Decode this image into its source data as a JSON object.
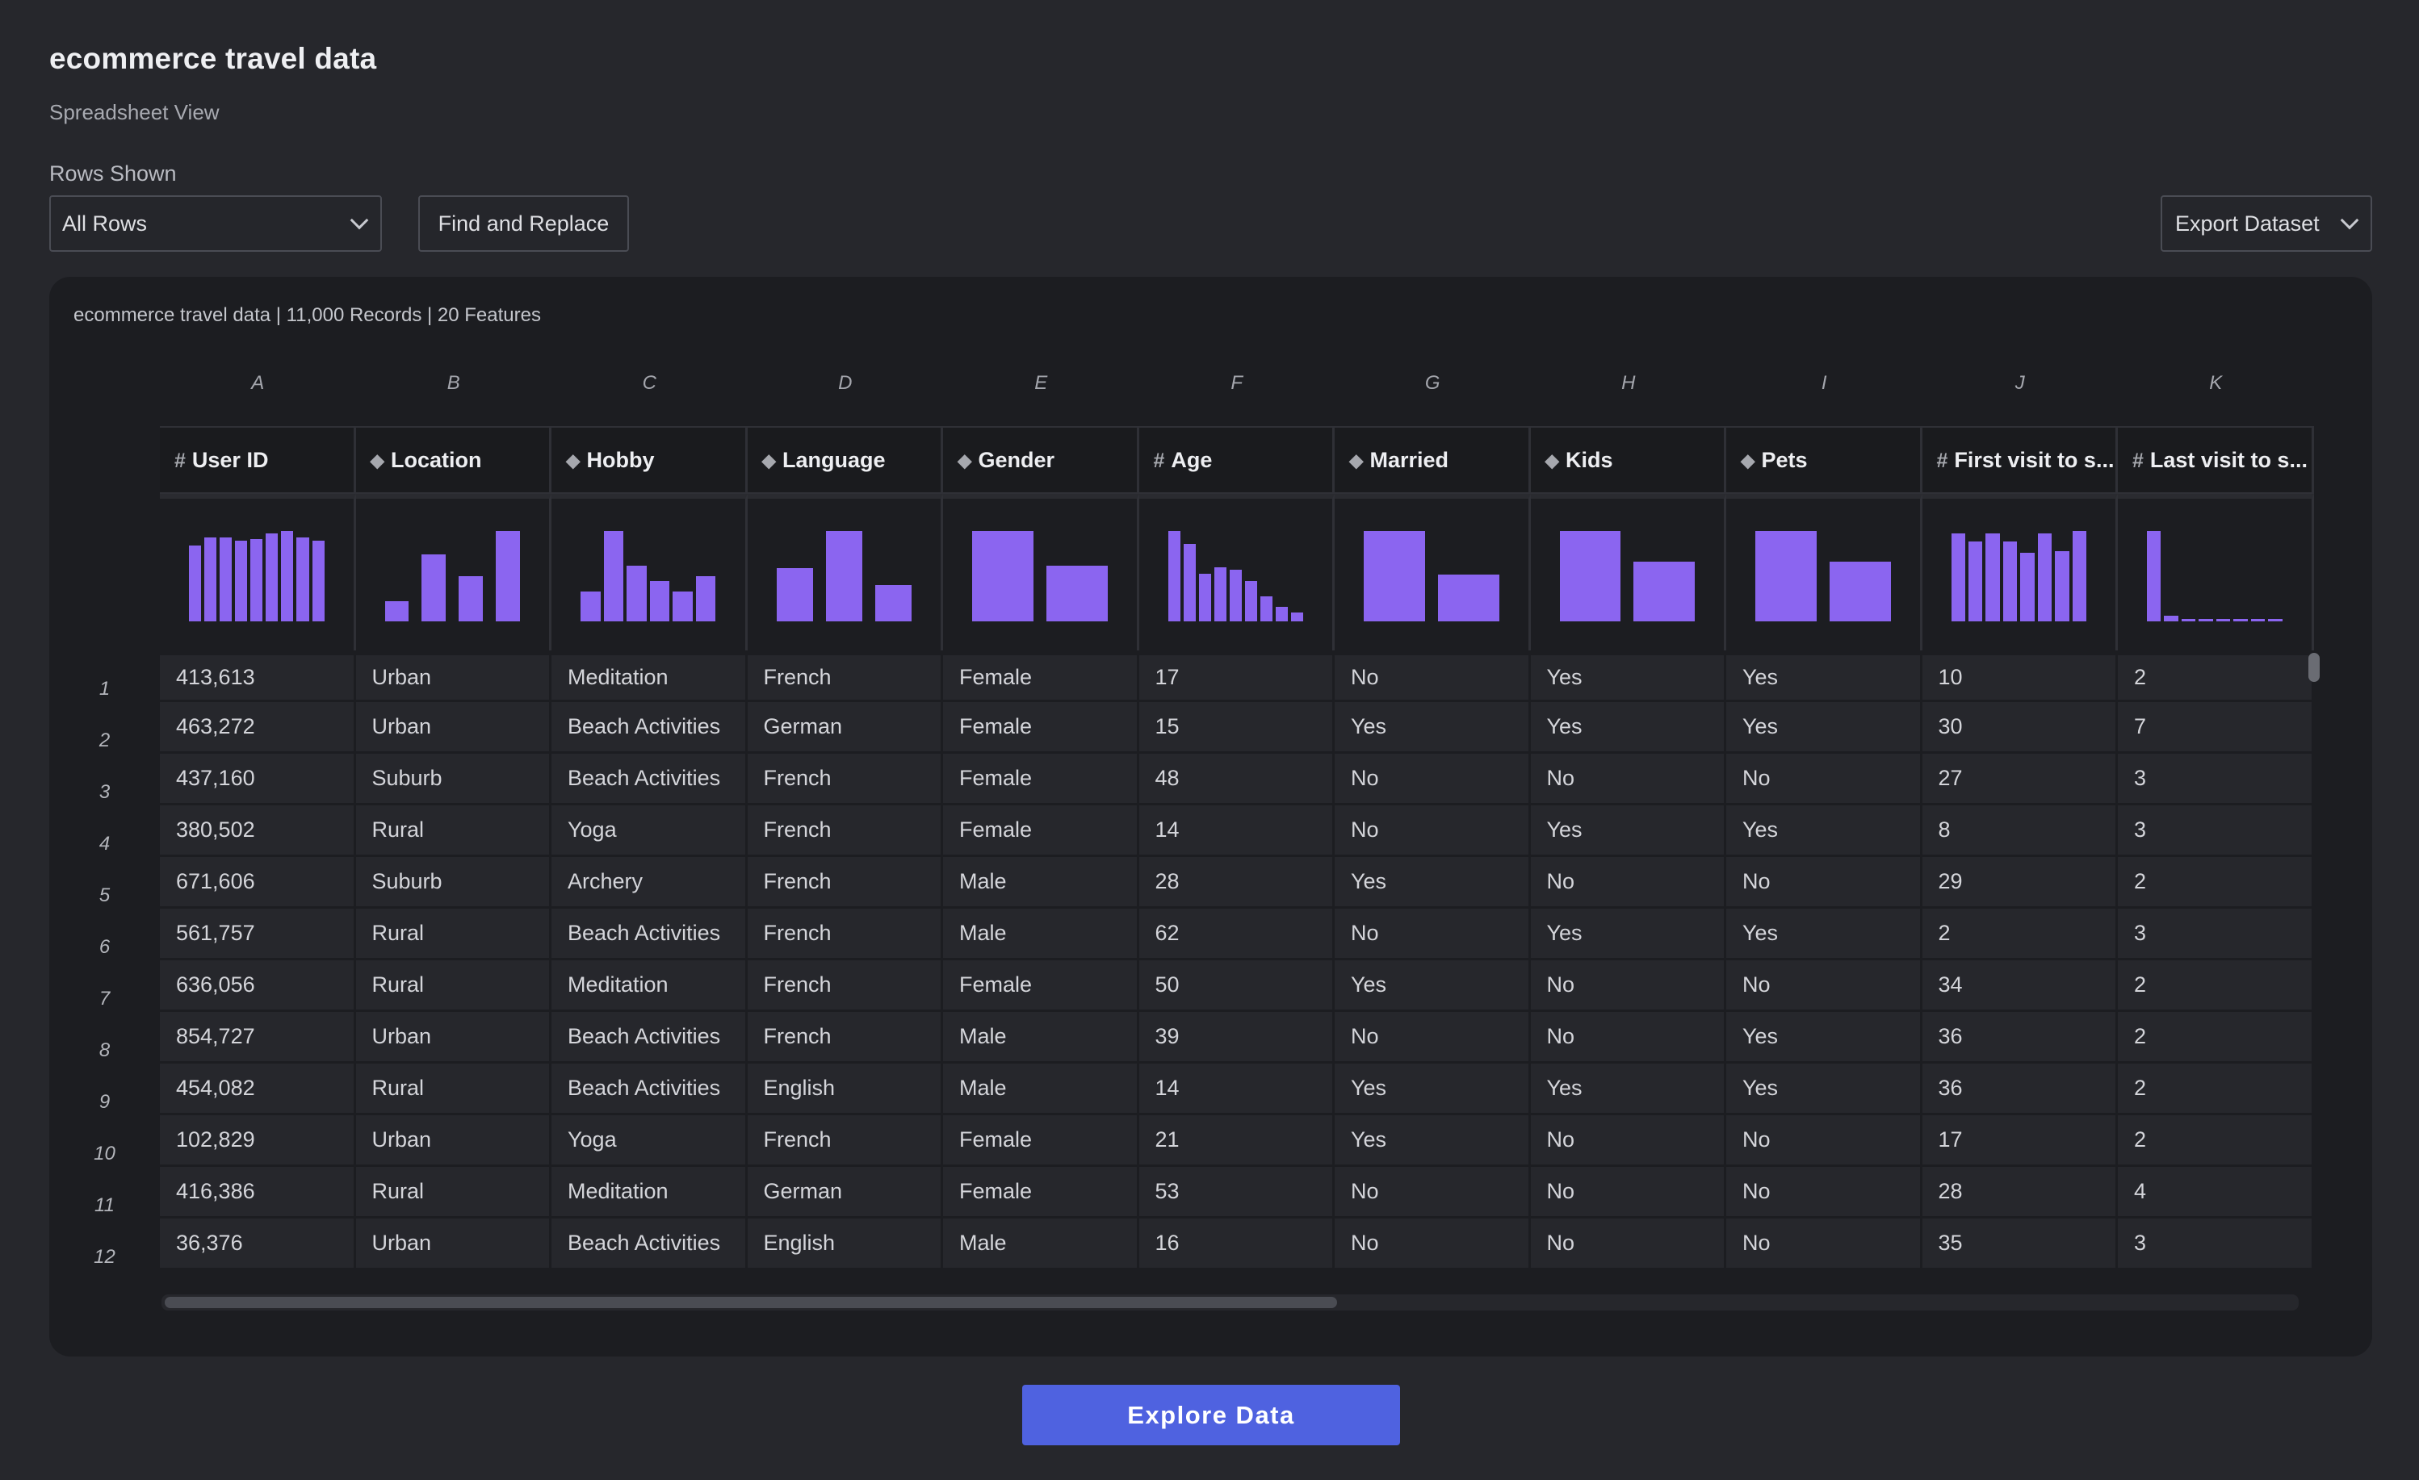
{
  "page": {
    "title": "ecommerce travel data",
    "subtitle": "Spreadsheet View"
  },
  "controls": {
    "rows_label": "Rows Shown",
    "rows_select_value": "All Rows",
    "find_replace_label": "Find and Replace",
    "export_label": "Export Dataset"
  },
  "panel": {
    "dataset_info": "ecommerce travel data | 11,000 Records | 20 Features"
  },
  "grid": {
    "column_letters": [
      "A",
      "B",
      "C",
      "D",
      "E",
      "F",
      "G",
      "H",
      "I",
      "J",
      "K"
    ],
    "columns": [
      {
        "name": "User ID",
        "type": "numeric",
        "icon": "hash-icon",
        "icon_glyph": "#",
        "histogram": [
          0.84,
          0.93,
          0.93,
          0.89,
          0.91,
          0.97,
          1.0,
          0.93,
          0.89
        ]
      },
      {
        "name": "Location",
        "type": "categorical",
        "icon": "tag-icon",
        "icon_glyph": "⬥",
        "histogram": [
          0.22,
          0.74,
          0.5,
          1.0
        ]
      },
      {
        "name": "Hobby",
        "type": "categorical",
        "icon": "tag-icon",
        "icon_glyph": "⬥",
        "histogram": [
          0.33,
          1.0,
          0.62,
          0.45,
          0.33,
          0.5
        ]
      },
      {
        "name": "Language",
        "type": "categorical",
        "icon": "tag-icon",
        "icon_glyph": "⬥",
        "histogram": [
          0.59,
          1.0,
          0.4
        ]
      },
      {
        "name": "Gender",
        "type": "categorical",
        "icon": "tag-icon",
        "icon_glyph": "⬥",
        "histogram": [
          1.0,
          0.62
        ]
      },
      {
        "name": "Age",
        "type": "numeric",
        "icon": "hash-icon",
        "icon_glyph": "#",
        "histogram": [
          1.0,
          0.86,
          0.53,
          0.6,
          0.57,
          0.45,
          0.28,
          0.16,
          0.1
        ]
      },
      {
        "name": "Married",
        "type": "categorical",
        "icon": "tag-icon",
        "icon_glyph": "⬥",
        "histogram": [
          1.0,
          0.52
        ]
      },
      {
        "name": "Kids",
        "type": "categorical",
        "icon": "tag-icon",
        "icon_glyph": "⬥",
        "histogram": [
          1.0,
          0.66
        ]
      },
      {
        "name": "Pets",
        "type": "categorical",
        "icon": "tag-icon",
        "icon_glyph": "⬥",
        "histogram": [
          1.0,
          0.66
        ]
      },
      {
        "name": "First visit to s...",
        "type": "numeric",
        "icon": "hash-icon",
        "icon_glyph": "#",
        "histogram": [
          0.97,
          0.88,
          0.97,
          0.88,
          0.76,
          0.97,
          0.78,
          1.0
        ]
      },
      {
        "name": "Last visit to s...",
        "type": "numeric",
        "icon": "hash-icon",
        "icon_glyph": "#",
        "histogram": [
          1.0,
          0.06,
          0.03,
          0.03,
          0.03,
          0.03,
          0.03,
          0.03
        ]
      }
    ],
    "row_numbers": [
      "1",
      "2",
      "3",
      "4",
      "5",
      "6",
      "7",
      "8",
      "9",
      "10",
      "11",
      "12"
    ],
    "rows": [
      [
        "413,613",
        "Urban",
        "Meditation",
        "French",
        "Female",
        "17",
        "No",
        "Yes",
        "Yes",
        "10",
        "2"
      ],
      [
        "463,272",
        "Urban",
        "Beach Activities",
        "German",
        "Female",
        "15",
        "Yes",
        "Yes",
        "Yes",
        "30",
        "7"
      ],
      [
        "437,160",
        "Suburb",
        "Beach Activities",
        "French",
        "Female",
        "48",
        "No",
        "No",
        "No",
        "27",
        "3"
      ],
      [
        "380,502",
        "Rural",
        "Yoga",
        "French",
        "Female",
        "14",
        "No",
        "Yes",
        "Yes",
        "8",
        "3"
      ],
      [
        "671,606",
        "Suburb",
        "Archery",
        "French",
        "Male",
        "28",
        "Yes",
        "No",
        "No",
        "29",
        "2"
      ],
      [
        "561,757",
        "Rural",
        "Beach Activities",
        "French",
        "Male",
        "62",
        "No",
        "Yes",
        "Yes",
        "2",
        "3"
      ],
      [
        "636,056",
        "Rural",
        "Meditation",
        "French",
        "Female",
        "50",
        "Yes",
        "No",
        "No",
        "34",
        "2"
      ],
      [
        "854,727",
        "Urban",
        "Beach Activities",
        "French",
        "Male",
        "39",
        "No",
        "No",
        "Yes",
        "36",
        "2"
      ],
      [
        "454,082",
        "Rural",
        "Beach Activities",
        "English",
        "Male",
        "14",
        "Yes",
        "Yes",
        "Yes",
        "36",
        "2"
      ],
      [
        "102,829",
        "Urban",
        "Yoga",
        "French",
        "Female",
        "21",
        "Yes",
        "No",
        "No",
        "17",
        "2"
      ],
      [
        "416,386",
        "Rural",
        "Meditation",
        "German",
        "Female",
        "53",
        "No",
        "No",
        "No",
        "28",
        "4"
      ],
      [
        "36,376",
        "Urban",
        "Beach Activities",
        "English",
        "Male",
        "16",
        "No",
        "No",
        "No",
        "35",
        "3"
      ]
    ]
  },
  "footer": {
    "explore_label": "Explore Data"
  },
  "colors": {
    "background": "#26272c",
    "panel": "#1c1d21",
    "histogram_bar": "#8b65f0",
    "primary_button": "#4f62e0"
  },
  "scrollbars": {
    "horizontal_visible_fraction": 0.55,
    "vertical_position": 0.0
  }
}
